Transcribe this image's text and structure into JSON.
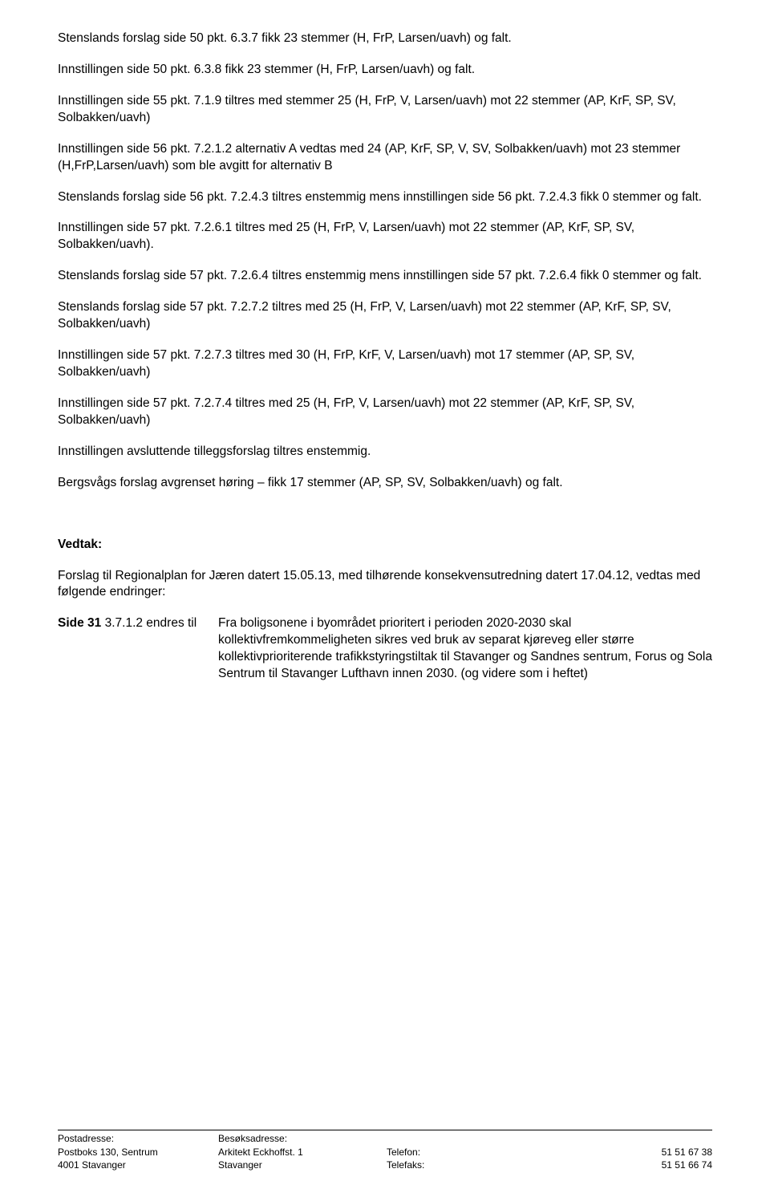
{
  "p1": "Stenslands forslag side 50 pkt. 6.3.7 fikk 23 stemmer (H, FrP, Larsen/uavh) og falt.",
  "p2": "Innstillingen side 50 pkt. 6.3.8 fikk 23 stemmer (H, FrP, Larsen/uavh) og falt.",
  "p3": "Innstillingen side 55 pkt. 7.1.9 tiltres med  stemmer 25 (H, FrP, V, Larsen/uavh) mot 22 stemmer (AP, KrF, SP, SV, Solbakken/uavh)",
  "p4": "Innstillingen side 56 pkt. 7.2.1.2 alternativ A vedtas med 24 (AP, KrF,  SP, V, SV, Solbakken/uavh) mot 23 stemmer (H,FrP,Larsen/uavh) som ble avgitt for alternativ B",
  "p5": "Stenslands forslag side 56 pkt. 7.2.4.3 tiltres enstemmig mens innstillingen side 56 pkt. 7.2.4.3 fikk 0 stemmer og falt.",
  "p6": "Innstillingen side 57 pkt. 7.2.6.1 tiltres med 25 (H, FrP, V, Larsen/uavh) mot 22 stemmer (AP, KrF, SP, SV, Solbakken/uavh).",
  "p7": "Stenslands forslag side 57 pkt. 7.2.6.4 tiltres enstemmig mens innstillingen side 57 pkt. 7.2.6.4 fikk 0 stemmer og falt.",
  "p8": "Stenslands forslag side 57 pkt. 7.2.7.2 tiltres med 25 (H, FrP, V, Larsen/uavh) mot 22 stemmer (AP, KrF, SP, SV, Solbakken/uavh)",
  "p9": "Innstillingen side 57 pkt. 7.2.7.3 tiltres med 30 (H, FrP, KrF, V, Larsen/uavh) mot 17 stemmer (AP, SP, SV, Solbakken/uavh)",
  "p10": "Innstillingen side 57 pkt. 7.2.7.4 tiltres med 25 (H, FrP, V, Larsen/uavh) mot 22 stemmer (AP, KrF, SP, SV, Solbakken/uavh)",
  "p11": "Innstillingen avsluttende tilleggsforslag tiltres enstemmig.",
  "p12": "Bergsvågs forslag avgrenset høring – fikk 17 stemmer (AP, SP, SV, Solbakken/uavh) og falt.",
  "vedtak_heading": "Vedtak:",
  "vedtak_p1": "Forslag til Regionalplan for Jæren datert 15.05.13, med tilhørende konsekvensutredning datert 17.04.12, vedtas med følgende endringer:",
  "side31_label_prefix": "Side 31 ",
  "side31_label_rest": "3.7.1.2 endres til",
  "side31_content": "Fra boligsonene i byområdet prioritert i perioden 2020-2030 skal kollektivfremkommeligheten sikres ved bruk av separat kjøreveg eller større kollektivprioriterende trafikkstyringstiltak til Stavanger og Sandnes sentrum, Forus og Sola Sentrum til Stavanger Lufthavn innen 2030. (og videre som i heftet)",
  "footer": {
    "postadresse_h": "Postadresse:",
    "postadresse_1": "Postboks 130, Sentrum",
    "postadresse_2": "4001 Stavanger",
    "besok_h": "Besøksadresse:",
    "besok_1": "Arkitekt Eckhoffst. 1",
    "besok_2": "Stavanger",
    "tel_label": "Telefon:",
    "fax_label": "Telefaks:",
    "tel_val": "51 51 67 38",
    "fax_val": "51 51 66 74"
  }
}
